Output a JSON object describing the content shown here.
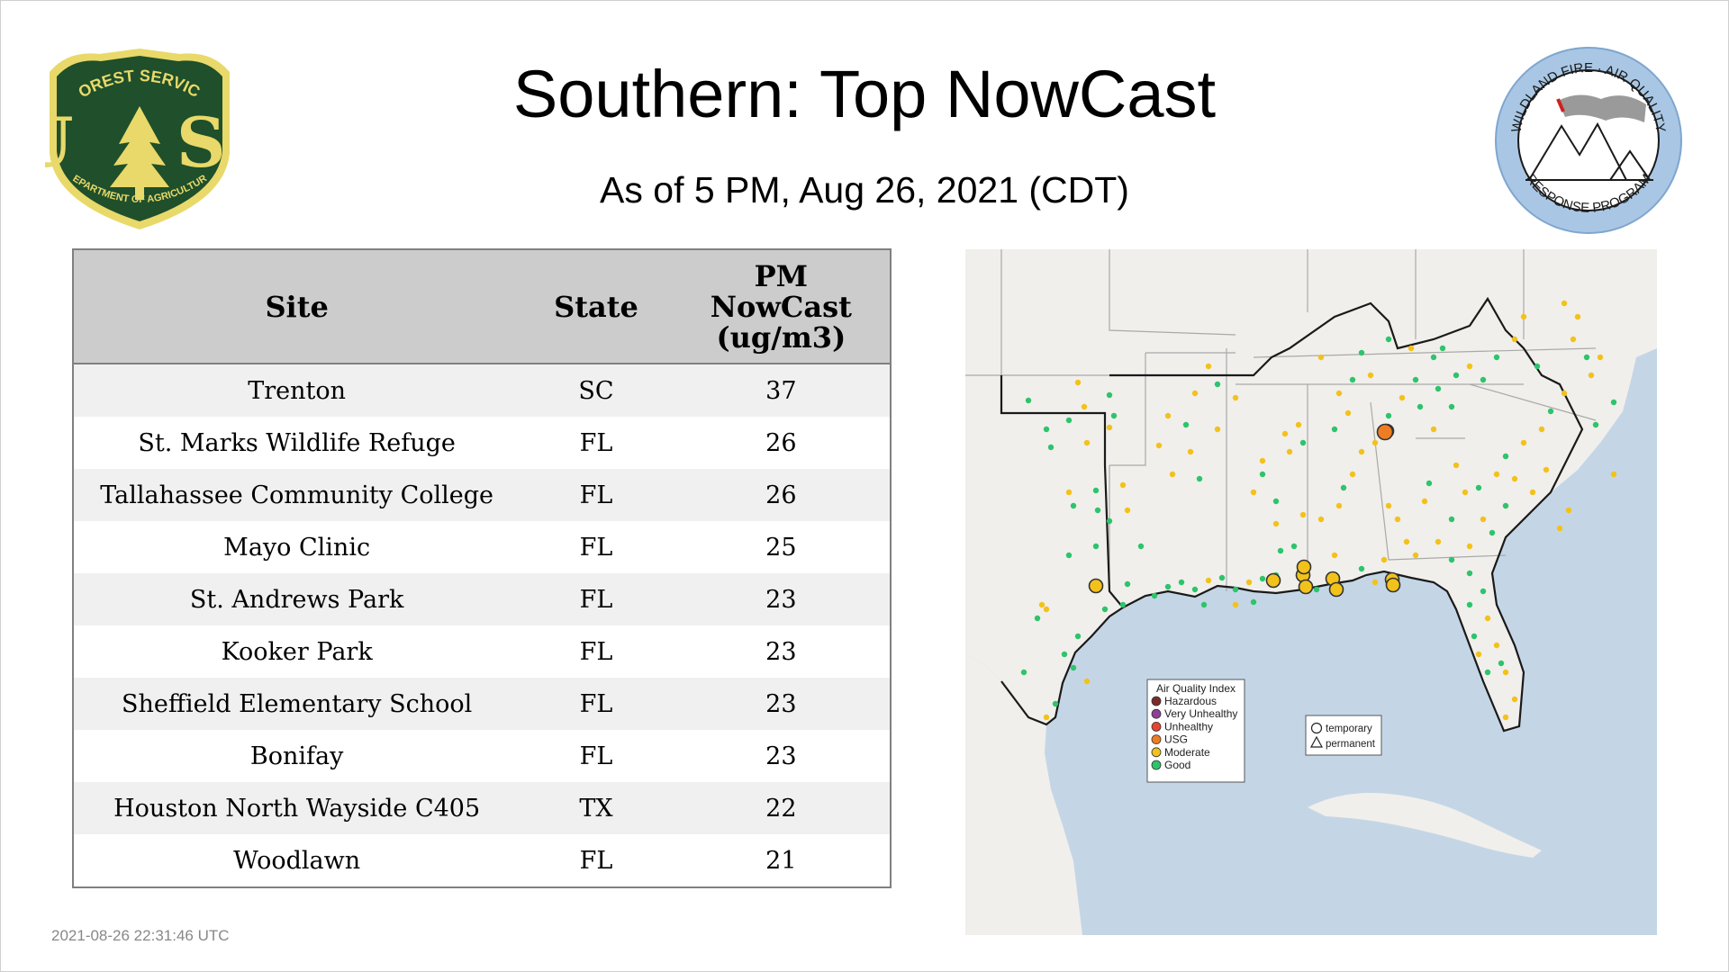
{
  "header": {
    "title": "Southern: Top NowCast",
    "subtitle": "As of  5 PM, Aug 26, 2021 (CDT)"
  },
  "logos": {
    "left": {
      "icon": "usda-forest-service-shield-icon",
      "top_text": "FOREST SERVICE",
      "letters": "U S",
      "bottom_text": "DEPARTMENT OF AGRICULTURE"
    },
    "right": {
      "icon": "wildland-fire-air-quality-seal-icon",
      "top_text": "WILDLAND FIRE · AIR QUALITY",
      "bottom_text": "RESPONSE PROGRAM"
    }
  },
  "table": {
    "headers": {
      "site": "Site",
      "state": "State",
      "pm_line1": "PM",
      "pm_line2": "NowCast",
      "pm_line3": "(ug/m3)"
    },
    "rows": [
      {
        "site": "Trenton",
        "state": "SC",
        "value": "37"
      },
      {
        "site": "St. Marks Wildlife Refuge",
        "state": "FL",
        "value": "26"
      },
      {
        "site": "Tallahassee Community College",
        "state": "FL",
        "value": "26"
      },
      {
        "site": "Mayo Clinic",
        "state": "FL",
        "value": "25"
      },
      {
        "site": "St. Andrews Park",
        "state": "FL",
        "value": "23"
      },
      {
        "site": "Kooker Park",
        "state": "FL",
        "value": "23"
      },
      {
        "site": "Sheffield Elementary School",
        "state": "FL",
        "value": "23"
      },
      {
        "site": "Bonifay",
        "state": "FL",
        "value": "23"
      },
      {
        "site": "Houston North Wayside C405",
        "state": "TX",
        "value": "22"
      },
      {
        "site": "Woodlawn",
        "state": "FL",
        "value": "21"
      }
    ]
  },
  "map": {
    "legend": {
      "title": "Air Quality Index",
      "items": [
        {
          "label": "Hazardous",
          "color": "#7e2a2a"
        },
        {
          "label": "Very Unhealthy",
          "color": "#8f3f97"
        },
        {
          "label": "Unhealthy",
          "color": "#e8432f"
        },
        {
          "label": "USG",
          "color": "#ee7d22"
        },
        {
          "label": "Moderate",
          "color": "#f2c21b"
        },
        {
          "label": "Good",
          "color": "#2dc46b"
        }
      ]
    },
    "shape_legend": {
      "temporary": "temporary",
      "permanent": "permanent"
    },
    "colors": {
      "water": "#c4d6e6",
      "land": "#f1efec",
      "border": "#1a1a1a",
      "state_lines": "#a9a9a9"
    }
  },
  "footer": {
    "timestamp": "2021-08-26 22:31:46 UTC"
  }
}
